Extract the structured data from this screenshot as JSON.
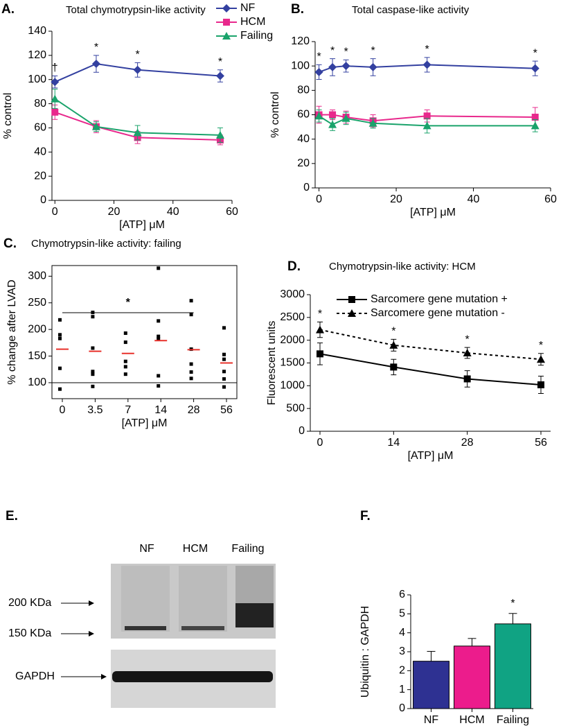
{
  "chart_data": [
    {
      "type": "line",
      "panel": "A.",
      "title": "Total chymotrypsin-like activity",
      "xlabel": "[ATP] μM",
      "ylabel": "% control",
      "x": [
        0,
        14,
        28,
        56
      ],
      "xlim": [
        -1,
        60
      ],
      "xticks": [
        0,
        20,
        40,
        60
      ],
      "ylim": [
        0,
        140
      ],
      "yticks": [
        0,
        20,
        40,
        60,
        80,
        100,
        120,
        140
      ],
      "legend": "upper right",
      "series": [
        {
          "name": "NF",
          "color": "#3340a0",
          "marker": "diamond",
          "values": [
            98,
            113,
            108,
            103
          ],
          "errors": [
            5,
            7,
            6,
            5
          ],
          "point_labels": [
            "†",
            "*",
            "*",
            "*"
          ]
        },
        {
          "name": "HCM",
          "color": "#e8288c",
          "marker": "square",
          "values": [
            73,
            61,
            52,
            50
          ],
          "errors": [
            6,
            5,
            5,
            4
          ]
        },
        {
          "name": "Failing",
          "color": "#1aa36b",
          "marker": "triangle",
          "values": [
            84,
            61,
            56,
            54
          ],
          "errors": [
            8,
            4,
            6,
            6
          ]
        }
      ]
    },
    {
      "type": "line",
      "panel": "B.",
      "title": "Total caspase-like activity",
      "xlabel": "[ATP] μM",
      "ylabel": "% control",
      "x": [
        0,
        3.5,
        7,
        14,
        28,
        56
      ],
      "xlim": [
        -1,
        60
      ],
      "xticks": [
        0,
        20,
        40,
        60
      ],
      "ylim": [
        0,
        120
      ],
      "yticks": [
        0,
        20,
        40,
        60,
        80,
        100,
        120
      ],
      "series": [
        {
          "color": "#3340a0",
          "marker": "diamond",
          "values": [
            95,
            99,
            100,
            99,
            101,
            98
          ],
          "errors": [
            6,
            7,
            5,
            7,
            6,
            6
          ],
          "point_labels": [
            "*",
            "*",
            "*",
            "*",
            "*",
            "*"
          ]
        },
        {
          "color": "#e8288c",
          "marker": "square",
          "values": [
            60,
            60,
            58,
            55,
            59,
            58
          ],
          "errors": [
            7,
            4,
            5,
            5,
            5,
            8
          ]
        },
        {
          "color": "#1aa36b",
          "marker": "triangle",
          "values": [
            59,
            52,
            57,
            53,
            51,
            51
          ],
          "errors": [
            5,
            5,
            5,
            4,
            6,
            5
          ]
        }
      ]
    },
    {
      "type": "scatter",
      "panel": "C.",
      "title": "Chymotrypsin-like activity: failing",
      "xlabel": "[ATP] μM",
      "ylabel": "% change after LVAD",
      "categories": [
        "0",
        "3.5",
        "7",
        "14",
        "28",
        "56"
      ],
      "points": [
        [
          218,
          190,
          183,
          127,
          88
        ],
        [
          232,
          224,
          165,
          121,
          116,
          93
        ],
        [
          193,
          176,
          140,
          130,
          116
        ],
        [
          315,
          216,
          187,
          182,
          113,
          94
        ],
        [
          254,
          228,
          163,
          135,
          120,
          108
        ],
        [
          203,
          153,
          144,
          121,
          107,
          92
        ]
      ],
      "medians": [
        163,
        159,
        155,
        179,
        162,
        137
      ],
      "median_color": "#e8302a",
      "color": "#000000",
      "ylim": [
        70,
        320
      ],
      "yticks": [
        100,
        150,
        200,
        250,
        300
      ],
      "reference_line": 100,
      "frame": "box",
      "bracket": {
        "label": "*",
        "from": "0",
        "to": "28"
      }
    },
    {
      "type": "line",
      "panel": "D.",
      "title": "Chymotrypsin-like activity: HCM",
      "xlabel": "[ATP] μM",
      "ylabel": "Fluorescent units",
      "categories": [
        "0",
        "14",
        "28",
        "56"
      ],
      "ylim": [
        0,
        3000
      ],
      "yticks": [
        0,
        500,
        1000,
        1500,
        2000,
        2500,
        3000
      ],
      "legend": "upper right",
      "series": [
        {
          "name": "Sarcomere gene mutation +",
          "color": "#000000",
          "marker": "square",
          "values": [
            1700,
            1410,
            1150,
            1020
          ],
          "errors": [
            240,
            170,
            180,
            190
          ]
        },
        {
          "name": "Sarcomere gene mutation -",
          "color": "#000000",
          "marker": "triangle",
          "dash": true,
          "values": [
            2230,
            1890,
            1720,
            1580
          ],
          "errors": [
            170,
            130,
            120,
            130
          ],
          "point_labels": [
            "*",
            "*",
            "*",
            "*"
          ]
        }
      ]
    },
    {
      "type": "bar",
      "panel": "F.",
      "ylabel": "Ubiquitin : GAPDH",
      "categories": [
        "NF",
        "HCM",
        "Failing"
      ],
      "values": [
        2.5,
        3.3,
        4.47
      ],
      "errors": [
        0.52,
        0.4,
        0.55
      ],
      "colors": [
        "#2e3192",
        "#ec1c8c",
        "#10a383"
      ],
      "point_labels": [
        null,
        null,
        "*"
      ],
      "ylim": [
        0,
        6
      ],
      "yticks": [
        0,
        1,
        2,
        3,
        4,
        5,
        6
      ]
    }
  ],
  "blot": {
    "panel": "E.",
    "lanes": [
      "NF",
      "HCM",
      "Failing"
    ],
    "markers": [
      "200 KDa",
      "150 KDa"
    ],
    "loading_control": "GAPDH"
  }
}
